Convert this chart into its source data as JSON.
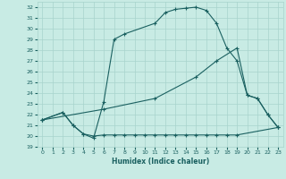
{
  "xlabel": "Humidex (Indice chaleur)",
  "bg_color": "#c8ebe4",
  "line_color": "#1a6060",
  "grid_color": "#a8d4cc",
  "xlim": [
    -0.5,
    23.5
  ],
  "ylim": [
    19,
    32.5
  ],
  "xticks": [
    0,
    1,
    2,
    3,
    4,
    5,
    6,
    7,
    8,
    9,
    10,
    11,
    12,
    13,
    14,
    15,
    16,
    17,
    18,
    19,
    20,
    21,
    22,
    23
  ],
  "yticks": [
    19,
    20,
    21,
    22,
    23,
    24,
    25,
    26,
    27,
    28,
    29,
    30,
    31,
    32
  ],
  "line1_x": [
    0,
    2,
    3,
    4,
    5,
    6,
    7,
    8,
    11,
    12,
    13,
    14,
    15,
    16,
    17,
    18,
    19,
    20,
    21,
    22,
    23
  ],
  "line1_y": [
    21.5,
    22.2,
    21.0,
    20.2,
    19.8,
    23.2,
    29.0,
    29.5,
    30.5,
    31.5,
    31.8,
    31.9,
    32.0,
    31.7,
    30.5,
    28.2,
    27.0,
    23.8,
    23.5,
    22.0,
    20.8
  ],
  "line2_x": [
    0,
    2,
    3,
    4,
    5,
    6,
    7,
    8,
    9,
    10,
    11,
    12,
    13,
    14,
    15,
    16,
    17,
    18,
    19,
    23
  ],
  "line2_y": [
    21.5,
    22.2,
    21.0,
    20.2,
    20.0,
    20.1,
    20.1,
    20.1,
    20.1,
    20.1,
    20.1,
    20.1,
    20.1,
    20.1,
    20.1,
    20.1,
    20.1,
    20.1,
    20.1,
    20.8
  ],
  "line3_x": [
    0,
    6,
    11,
    15,
    17,
    19,
    20,
    21,
    22,
    23
  ],
  "line3_y": [
    21.5,
    22.5,
    23.5,
    25.5,
    27.0,
    28.2,
    23.8,
    23.5,
    22.0,
    20.8
  ]
}
